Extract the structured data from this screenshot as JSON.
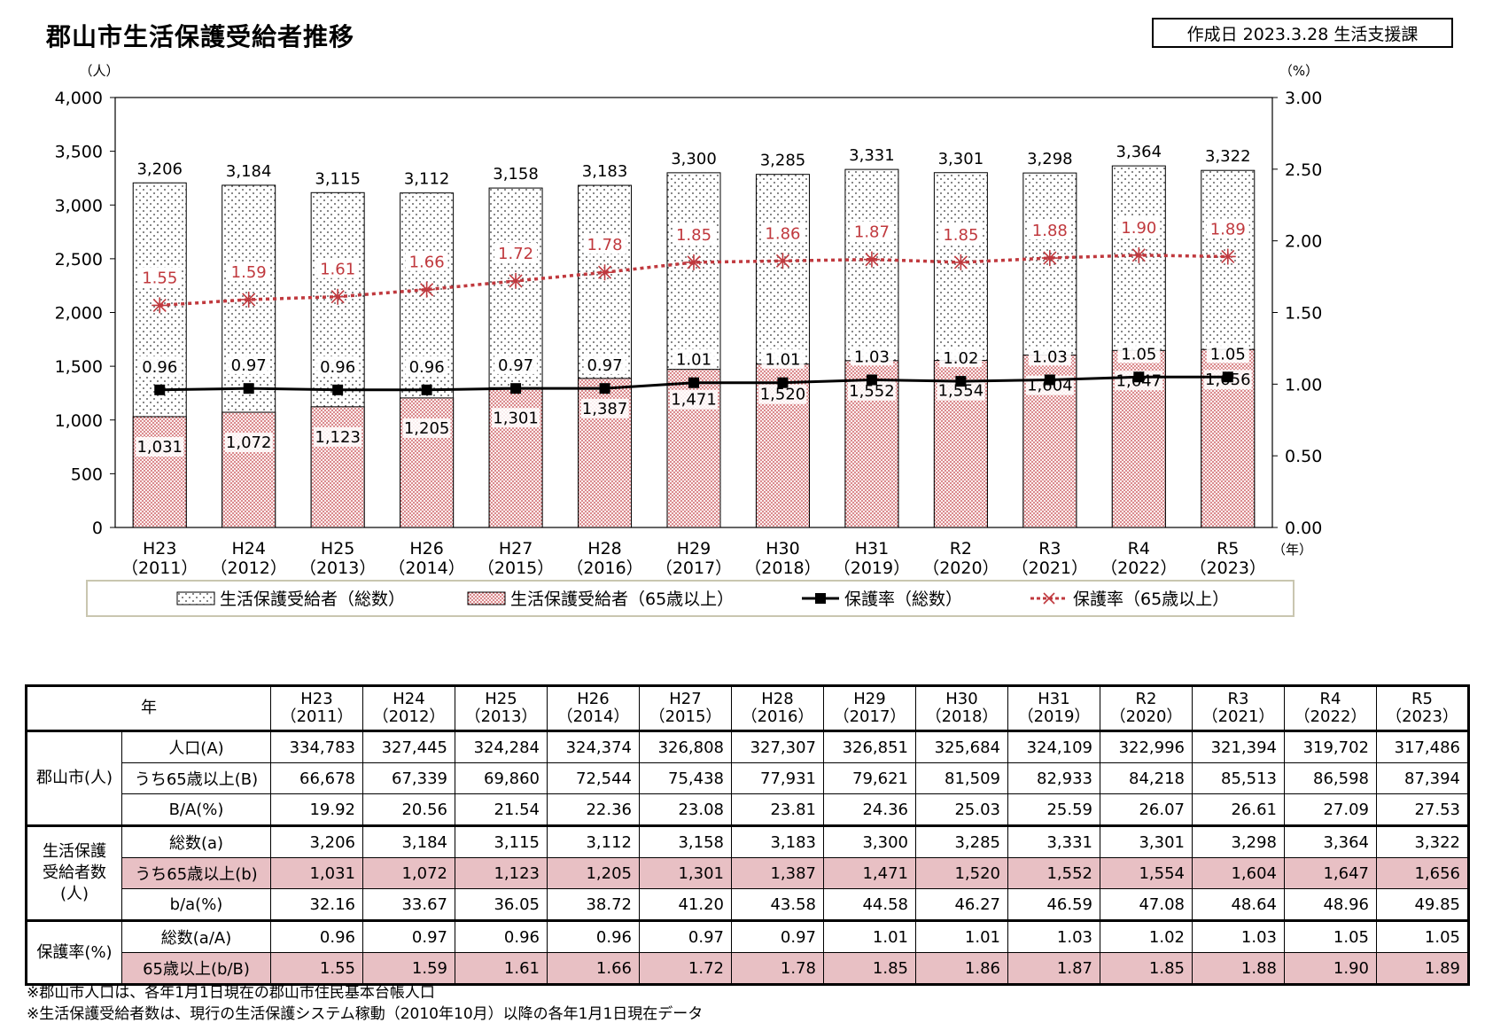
{
  "title": "郡山市生活保護受給者推移",
  "date_box": "作成日  2023.3.28 生活支援課",
  "chart_data": {
    "type": "bar",
    "y_left_unit": "（人）",
    "y_right_unit": "（%）",
    "x_unit": "（年）",
    "ylim": [
      0,
      4000
    ],
    "y_ticks": [
      "0",
      "500",
      "1,000",
      "1,500",
      "2,000",
      "2,500",
      "3,000",
      "3,500",
      "4,000"
    ],
    "y2lim": [
      0,
      3.0
    ],
    "y2_ticks": [
      "0.00",
      "0.50",
      "1.00",
      "1.50",
      "2.00",
      "2.50",
      "3.00"
    ],
    "categories": [
      {
        "era": "H23",
        "year": "（2011）"
      },
      {
        "era": "H24",
        "year": "（2012）"
      },
      {
        "era": "H25",
        "year": "（2013）"
      },
      {
        "era": "H26",
        "year": "（2014）"
      },
      {
        "era": "H27",
        "year": "（2015）"
      },
      {
        "era": "H28",
        "year": "（2016）"
      },
      {
        "era": "H29",
        "year": "（2017）"
      },
      {
        "era": "H30",
        "year": "（2018）"
      },
      {
        "era": "H31",
        "year": "（2019）"
      },
      {
        "era": "R2",
        "year": "（2020）"
      },
      {
        "era": "R3",
        "year": "（2021）"
      },
      {
        "era": "R4",
        "year": "（2022）"
      },
      {
        "era": "R5",
        "year": "（2023）"
      }
    ],
    "series": [
      {
        "name": "生活保護受給者（総数）",
        "kind": "bar",
        "values": [
          3206,
          3184,
          3115,
          3112,
          3158,
          3183,
          3300,
          3285,
          3331,
          3301,
          3298,
          3364,
          3322
        ],
        "labels": [
          "3,206",
          "3,184",
          "3,115",
          "3,112",
          "3,158",
          "3,183",
          "3,300",
          "3,285",
          "3,331",
          "3,301",
          "3,298",
          "3,364",
          "3,322"
        ]
      },
      {
        "name": "生活保護受給者（65歳以上）",
        "kind": "bar",
        "values": [
          1031,
          1072,
          1123,
          1205,
          1301,
          1387,
          1471,
          1520,
          1552,
          1554,
          1604,
          1647,
          1656
        ],
        "labels": [
          "1,031",
          "1,072",
          "1,123",
          "1,205",
          "1,301",
          "1,387",
          "1,471",
          "1,520",
          "1,552",
          "1,554",
          "1,604",
          "1,647",
          "1,656"
        ]
      },
      {
        "name": "保護率（総数）",
        "kind": "line",
        "axis": "right",
        "values": [
          0.96,
          0.97,
          0.96,
          0.96,
          0.97,
          0.97,
          1.01,
          1.01,
          1.03,
          1.02,
          1.03,
          1.05,
          1.05
        ],
        "labels": [
          "0.96",
          "0.97",
          "0.96",
          "0.96",
          "0.97",
          "0.97",
          "1.01",
          "1.01",
          "1.03",
          "1.02",
          "1.03",
          "1.05",
          "1.05"
        ]
      },
      {
        "name": "保護率（65歳以上）",
        "kind": "line",
        "axis": "right",
        "values": [
          1.55,
          1.59,
          1.61,
          1.66,
          1.72,
          1.78,
          1.85,
          1.86,
          1.87,
          1.85,
          1.88,
          1.9,
          1.89
        ],
        "labels": [
          "1.55",
          "1.59",
          "1.61",
          "1.66",
          "1.72",
          "1.78",
          "1.85",
          "1.86",
          "1.87",
          "1.85",
          "1.88",
          "1.90",
          "1.89"
        ]
      }
    ],
    "colors": {
      "senior_line": "#c0393e",
      "senior_fill": "#c0393e",
      "total_line": "#000000"
    },
    "legend_position": "bottom"
  },
  "table": {
    "header_corner": "年",
    "columns": [
      {
        "era": "H23",
        "year": "（2011）"
      },
      {
        "era": "H24",
        "year": "（2012）"
      },
      {
        "era": "H25",
        "year": "（2013）"
      },
      {
        "era": "H26",
        "year": "（2014）"
      },
      {
        "era": "H27",
        "year": "（2015）"
      },
      {
        "era": "H28",
        "year": "（2016）"
      },
      {
        "era": "H29",
        "year": "（2017）"
      },
      {
        "era": "H30",
        "year": "（2018）"
      },
      {
        "era": "H31",
        "year": "（2019）"
      },
      {
        "era": "R2",
        "year": "（2020）"
      },
      {
        "era": "R3",
        "year": "（2021）"
      },
      {
        "era": "R4",
        "year": "（2022）"
      },
      {
        "era": "R5",
        "year": "（2023）"
      }
    ],
    "groups": [
      {
        "label": "郡山市(人)",
        "rows": [
          {
            "label": "人口(A)",
            "pink": false,
            "values": [
              "334,783",
              "327,445",
              "324,284",
              "324,374",
              "326,808",
              "327,307",
              "326,851",
              "325,684",
              "324,109",
              "322,996",
              "321,394",
              "319,702",
              "317,486"
            ]
          },
          {
            "label": "うち65歳以上(B)",
            "pink": false,
            "values": [
              "66,678",
              "67,339",
              "69,860",
              "72,544",
              "75,438",
              "77,931",
              "79,621",
              "81,509",
              "82,933",
              "84,218",
              "85,513",
              "86,598",
              "87,394"
            ]
          },
          {
            "label": "B/A(%)",
            "pink": false,
            "values": [
              "19.92",
              "20.56",
              "21.54",
              "22.36",
              "23.08",
              "23.81",
              "24.36",
              "25.03",
              "25.59",
              "26.07",
              "26.61",
              "27.09",
              "27.53"
            ]
          }
        ]
      },
      {
        "label": "生活保護受給者数(人)",
        "label_lines": [
          "生活保護",
          "受給者数",
          "(人)"
        ],
        "rows": [
          {
            "label": "総数(a)",
            "pink": false,
            "values": [
              "3,206",
              "3,184",
              "3,115",
              "3,112",
              "3,158",
              "3,183",
              "3,300",
              "3,285",
              "3,331",
              "3,301",
              "3,298",
              "3,364",
              "3,322"
            ]
          },
          {
            "label": "うち65歳以上(b)",
            "pink": true,
            "values": [
              "1,031",
              "1,072",
              "1,123",
              "1,205",
              "1,301",
              "1,387",
              "1,471",
              "1,520",
              "1,552",
              "1,554",
              "1,604",
              "1,647",
              "1,656"
            ]
          },
          {
            "label": "b/a(%)",
            "pink": false,
            "values": [
              "32.16",
              "33.67",
              "36.05",
              "38.72",
              "41.20",
              "43.58",
              "44.58",
              "46.27",
              "46.59",
              "47.08",
              "48.64",
              "48.96",
              "49.85"
            ]
          }
        ]
      },
      {
        "label": "保護率(%)",
        "rows": [
          {
            "label": "総数(a/A)",
            "pink": false,
            "values": [
              "0.96",
              "0.97",
              "0.96",
              "0.96",
              "0.97",
              "0.97",
              "1.01",
              "1.01",
              "1.03",
              "1.02",
              "1.03",
              "1.05",
              "1.05"
            ]
          },
          {
            "label": "65歳以上(b/B)",
            "pink": true,
            "values": [
              "1.55",
              "1.59",
              "1.61",
              "1.66",
              "1.72",
              "1.78",
              "1.85",
              "1.86",
              "1.87",
              "1.85",
              "1.88",
              "1.90",
              "1.89"
            ]
          }
        ]
      }
    ]
  },
  "notes": [
    "※郡山市人口は、各年1月1日現在の郡山市住民基本台帳人口",
    "※生活保護受給者数は、現行の生活保護システム稼動（2010年10月）以降の各年1月1日現在データ"
  ]
}
